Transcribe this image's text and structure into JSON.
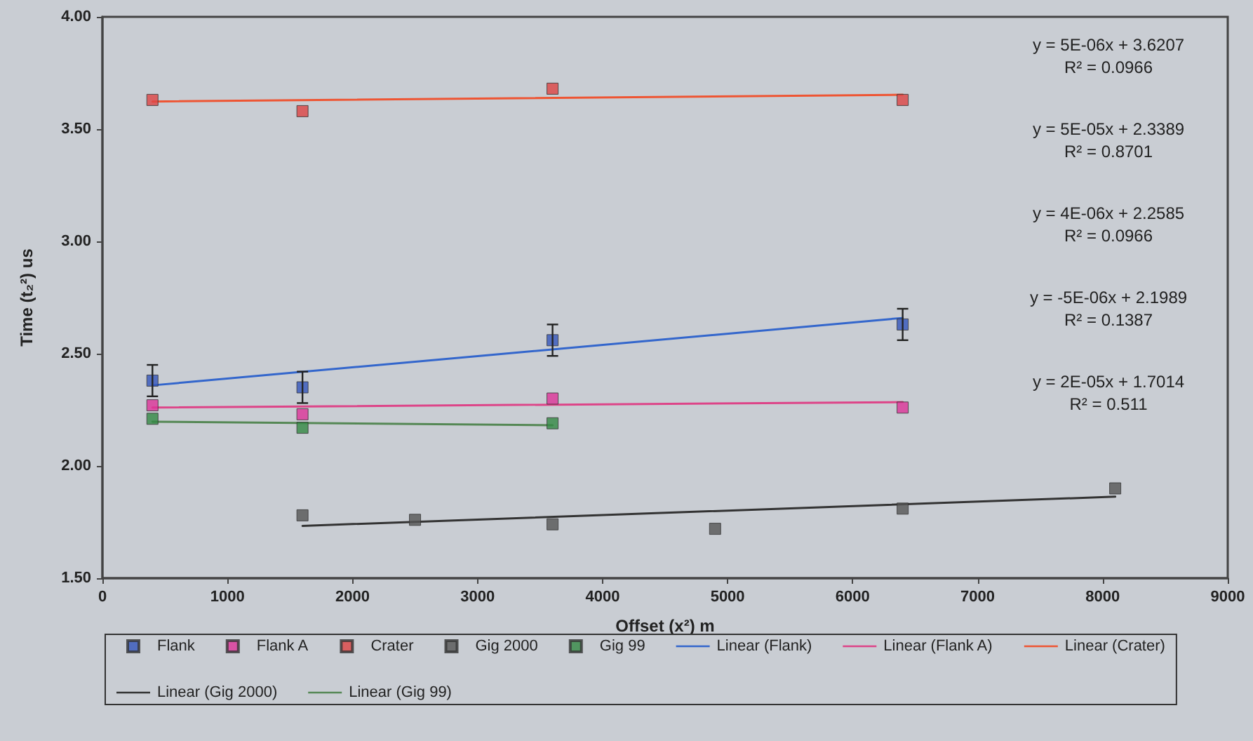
{
  "chart_data": {
    "type": "scatter",
    "xlabel": "Offset (x²) m",
    "ylabel": "Time (t₂²) us",
    "xlim": [
      0,
      9000
    ],
    "xticks": [
      0,
      1000,
      2000,
      3000,
      4000,
      5000,
      6000,
      7000,
      8000,
      9000
    ],
    "ylim": [
      1.5,
      4
    ],
    "yticks": [
      {
        "value": 1.5,
        "label": "1.50"
      },
      {
        "value": 2,
        "label": "2.00"
      },
      {
        "value": 2.5,
        "label": "2.50"
      },
      {
        "value": 3,
        "label": "3.00"
      },
      {
        "value": 3.5,
        "label": "3.50"
      },
      {
        "value": 4,
        "label": "4.00"
      }
    ],
    "grid": false,
    "legend": "bottom",
    "marker": "square",
    "series": [
      {
        "name": "Flank",
        "color": "#3355bb",
        "x": [
          400,
          1600,
          3600,
          6400
        ],
        "values": [
          2.38,
          2.35,
          2.56,
          2.63
        ],
        "errors": [
          0.07,
          0.07,
          0.07,
          0.07
        ]
      },
      {
        "name": "Flank A",
        "color": "#dd3399",
        "x": [
          400,
          1600,
          3600,
          6400
        ],
        "values": [
          2.27,
          2.23,
          2.3,
          2.26
        ]
      },
      {
        "name": "Crater",
        "color": "#dd4444",
        "x": [
          400,
          1600,
          3600,
          6400
        ],
        "values": [
          3.63,
          3.58,
          3.68,
          3.63
        ]
      },
      {
        "name": "Gig 2000",
        "color": "#555555",
        "x": [
          1600,
          2500,
          3600,
          4900,
          6400,
          8100
        ],
        "values": [
          1.78,
          1.76,
          1.74,
          1.72,
          1.81,
          1.9
        ]
      },
      {
        "name": "Gig 99",
        "color": "#338844",
        "x": [
          400,
          1600,
          3600
        ],
        "values": [
          2.21,
          2.17,
          2.19
        ]
      },
      {
        "name": "Linear (Flank)",
        "type": "line",
        "marker": "none",
        "line_style": "solid",
        "color": "#3366cc",
        "x": [
          400,
          6400
        ],
        "values": [
          2.359,
          2.659
        ]
      },
      {
        "name": "Linear (Flank A)",
        "type": "line",
        "marker": "none",
        "line_style": "solid",
        "color": "#dd4488",
        "x": [
          400,
          6400
        ],
        "values": [
          2.26,
          2.284
        ]
      },
      {
        "name": "Linear (Crater)",
        "type": "line",
        "marker": "none",
        "line_style": "solid",
        "color": "#ee5533",
        "x": [
          400,
          6400
        ],
        "values": [
          3.623,
          3.653
        ]
      },
      {
        "name": "Linear (Gig 2000)",
        "type": "line",
        "marker": "none",
        "line_style": "solid",
        "color": "#333333",
        "x": [
          1600,
          8100
        ],
        "values": [
          1.733,
          1.863
        ]
      },
      {
        "name": "Linear (Gig 99)",
        "type": "line",
        "marker": "none",
        "line_style": "solid",
        "color": "#558855",
        "x": [
          400,
          3600
        ],
        "values": [
          2.197,
          2.181
        ]
      }
    ],
    "annotations": [
      "y = 5E-06x + 3.6207\nR² = 0.0966",
      "y = 5E-05x + 2.3389\nR² = 0.8701",
      "y = 4E-06x + 2.2585\nR² = 0.0966",
      "y = -5E-06x + 2.1989\nR² = 0.1387",
      "y = 2E-05x + 1.7014\nR² = 0.511"
    ]
  }
}
